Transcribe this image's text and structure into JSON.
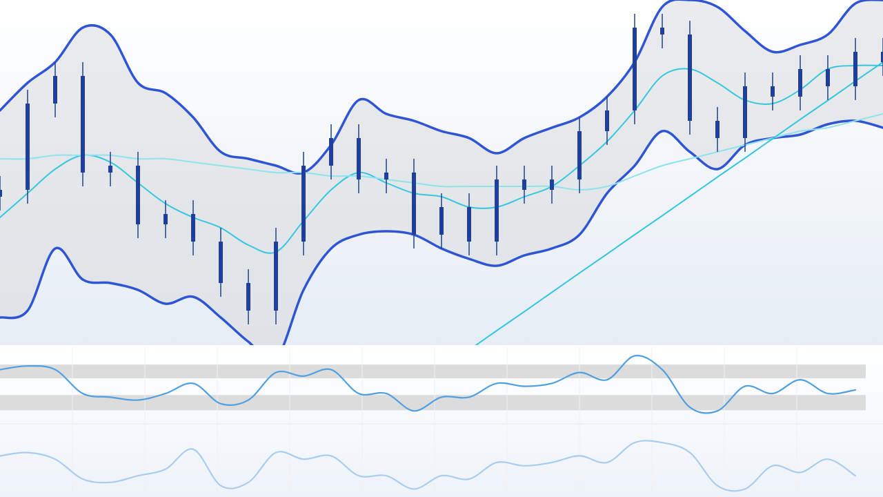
{
  "chart_data": [
    {
      "type": "candlestick",
      "categories": [
        null,
        null,
        null,
        null,
        null,
        null,
        null,
        null,
        null,
        null,
        null,
        null,
        null,
        null,
        null,
        null,
        null,
        null,
        null,
        null,
        null,
        null,
        null,
        null,
        null,
        null,
        null,
        null,
        null,
        null,
        null,
        null,
        null
      ],
      "open": [
        43,
        45,
        70,
        78,
        50,
        52,
        35,
        38,
        30,
        18,
        10,
        30,
        52,
        60,
        48,
        50,
        32,
        40,
        30,
        48,
        45,
        48,
        62,
        68,
        92,
        90,
        65,
        60,
        75,
        72,
        80,
        75,
        85
      ],
      "high": [
        49,
        74,
        82,
        82,
        56,
        56,
        42,
        42,
        34,
        22,
        34,
        56,
        64,
        64,
        54,
        54,
        44,
        44,
        52,
        52,
        52,
        66,
        72,
        96,
        96,
        94,
        69,
        79,
        79,
        84,
        84,
        89,
        89
      ],
      "low": [
        39,
        41,
        66,
        46,
        46,
        31,
        31,
        26,
        14,
        6,
        6,
        26,
        48,
        44,
        44,
        28,
        28,
        26,
        26,
        41,
        41,
        44,
        58,
        64,
        86,
        61,
        56,
        56,
        68,
        68,
        71,
        71,
        78
      ],
      "close": [
        45,
        70,
        78,
        50,
        52,
        35,
        38,
        30,
        18,
        10,
        30,
        52,
        60,
        48,
        50,
        32,
        40,
        30,
        48,
        45,
        48,
        62,
        68,
        92,
        90,
        65,
        60,
        75,
        72,
        80,
        75,
        85,
        82
      ],
      "color": "#1f3f9a",
      "series": [
        {
          "color": "#2f55d4",
          "values": [
            68,
            76,
            82,
            92,
            90,
            76,
            73,
            66,
            56,
            54,
            52,
            50,
            58,
            71,
            67,
            65,
            62,
            60,
            55.6,
            60,
            63,
            66,
            72,
            82,
            98,
            100,
            98,
            91,
            85,
            87,
            90,
            99,
            100
          ]
        },
        {
          "color": "#2f55d4",
          "values": [
            8,
            10,
            28,
            19,
            18,
            16,
            12,
            14,
            8,
            1,
            -4,
            16,
            28,
            32,
            33,
            32,
            28,
            25,
            23,
            26,
            28,
            32,
            44,
            52,
            62,
            56,
            51,
            58,
            60,
            61,
            64,
            65,
            63
          ]
        },
        {
          "color": "#35c6e0",
          "values": [
            37,
            44,
            51,
            55,
            53,
            47,
            41,
            37,
            34,
            29,
            27,
            36,
            45,
            50,
            47,
            44,
            43,
            40,
            40,
            43,
            46,
            52,
            59,
            68,
            78,
            80,
            76,
            71,
            70,
            74,
            80,
            81,
            81
          ]
        },
        {
          "color": "#8fe3ee",
          "values": [
            54,
            54,
            55,
            55,
            55,
            54,
            54,
            53,
            52,
            51,
            50,
            50,
            49,
            49,
            48,
            47,
            46,
            46,
            46,
            46,
            46,
            45,
            46,
            49,
            52,
            54,
            56,
            58,
            60,
            62,
            63,
            65,
            67
          ]
        },
        {
          "color": "#35c6e0",
          "values": [
            null,
            null,
            null,
            null,
            null,
            null,
            null,
            null,
            null,
            null,
            null,
            null,
            null,
            null,
            null,
            null,
            null,
            -1.4,
            4.2,
            9.7,
            15.3,
            20.9,
            26.4,
            32,
            37.5,
            43.1,
            48.7,
            54.2,
            59.8,
            65.4,
            70.9,
            76.5,
            82
          ]
        }
      ],
      "ylim": [
        0,
        100
      ]
    },
    {
      "type": "line",
      "categories": [
        null,
        null,
        null,
        null,
        null,
        null,
        null,
        null,
        null,
        null,
        null,
        null,
        null,
        null,
        null,
        null,
        null,
        null,
        null,
        null,
        null,
        null,
        null,
        null,
        null,
        null,
        null,
        null,
        null,
        null,
        null,
        null,
        null
      ],
      "bands": [
        [
          59,
          78
        ],
        [
          15,
          36
        ]
      ],
      "series": [
        {
          "color": "#4f9fe0",
          "values": [
            71,
            76,
            71,
            38,
            33,
            29,
            38,
            52,
            24,
            29,
            67,
            62,
            71,
            38,
            38,
            14,
            33,
            33,
            52,
            48,
            52,
            67,
            57,
            90,
            71,
            19,
            14,
            48,
            38,
            57,
            38,
            43,
            null
          ]
        }
      ],
      "ylim": [
        0,
        100
      ]
    },
    {
      "type": "line",
      "categories": [
        null,
        null,
        null,
        null,
        null,
        null,
        null,
        null,
        null,
        null,
        null,
        null,
        null,
        null,
        null,
        null,
        null,
        null,
        null,
        null,
        null,
        null,
        null,
        null,
        null,
        null,
        null,
        null,
        null,
        null,
        null,
        null,
        null
      ],
      "series": [
        {
          "color": "#a9cdf0",
          "values": [
            60,
            65,
            55,
            25,
            20,
            30,
            40,
            70,
            15,
            20,
            65,
            55,
            60,
            30,
            30,
            10,
            30,
            25,
            50,
            45,
            50,
            60,
            50,
            80,
            80,
            65,
            15,
            10,
            45,
            35,
            55,
            30,
            null
          ]
        }
      ],
      "ylim": [
        0,
        100
      ]
    }
  ]
}
